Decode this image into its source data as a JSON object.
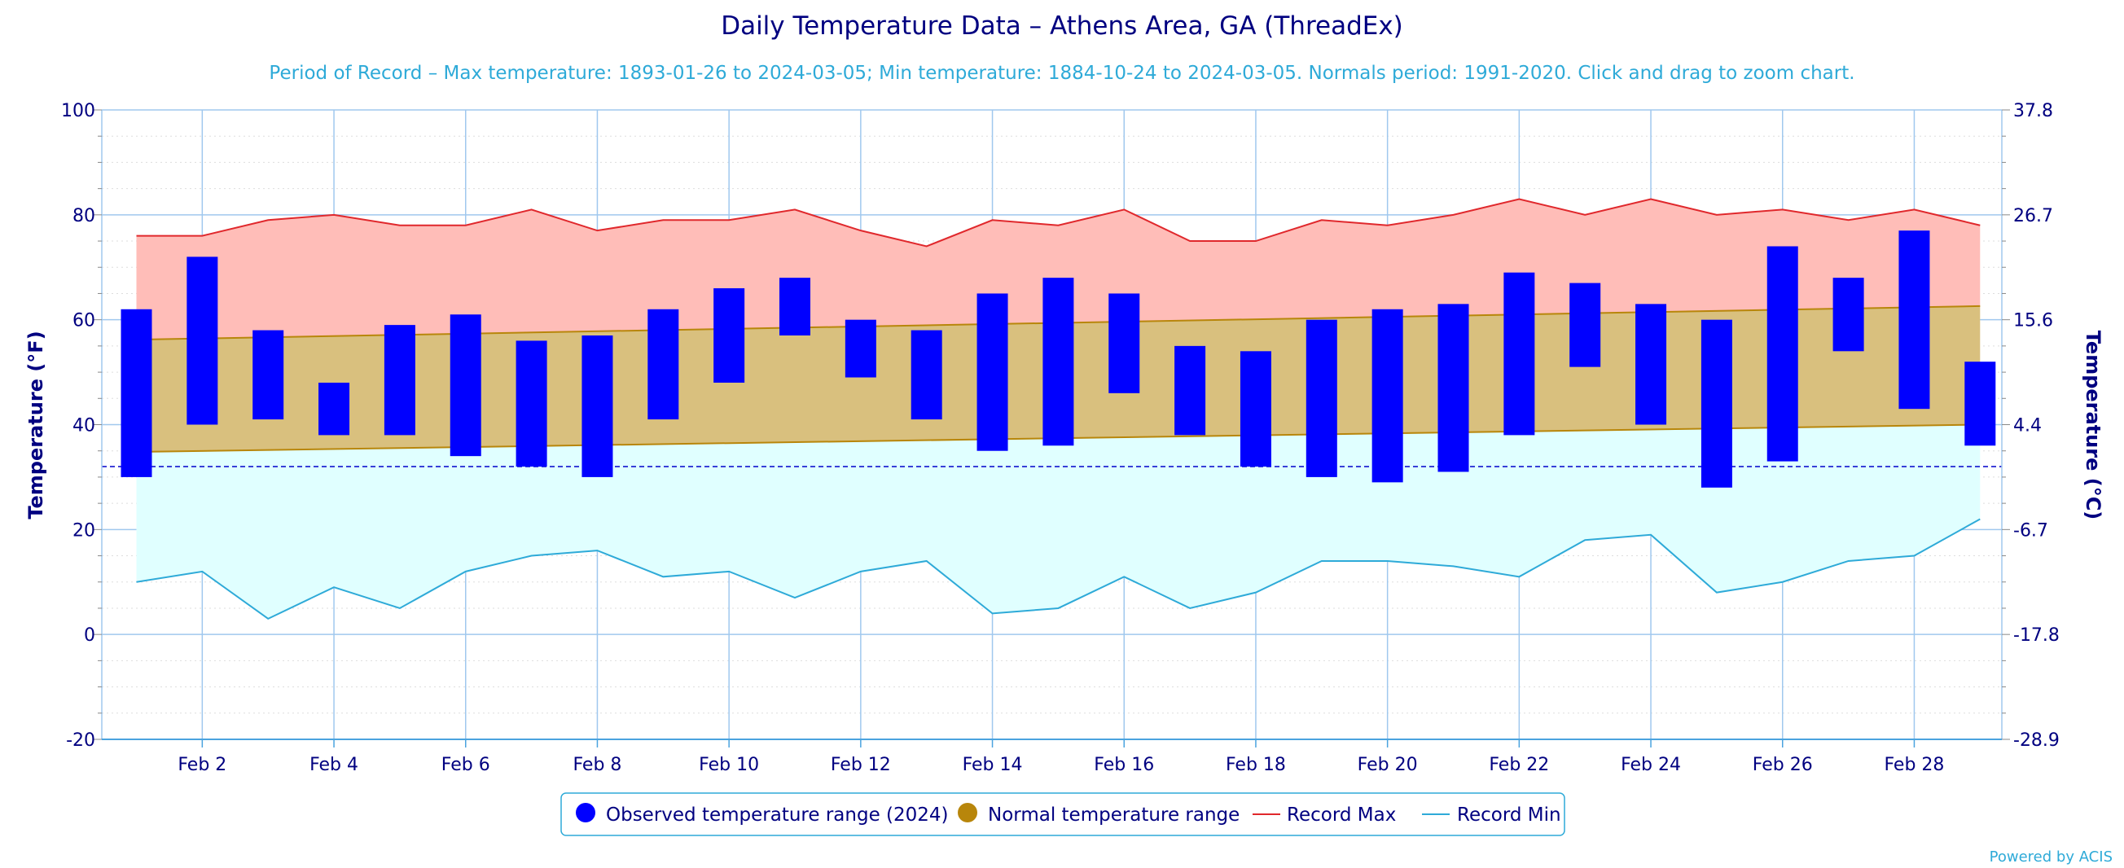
{
  "chart_data": {
    "type": "bar",
    "title": "Daily Temperature Data – Athens Area, GA (ThreadEx)",
    "subtitle": "Period of Record – Max temperature: 1893-01-26 to 2024-03-05; Min temperature: 1884-10-24 to 2024-03-05. Normals period: 1991-2020. Click and drag to zoom chart.",
    "ylabel": "Temperature (°F)",
    "ylabel_right": "Temperature (°C)",
    "ylim": [
      -20,
      100
    ],
    "y_ticks": [
      "-20",
      "0",
      "20",
      "40",
      "60",
      "80",
      "100"
    ],
    "y_ticks_right": [
      "-28.9",
      "-17.8",
      "-6.7",
      "4.4",
      "15.6",
      "26.7",
      "37.8"
    ],
    "x_ticks": [
      "Feb 2",
      "Feb 4",
      "Feb 6",
      "Feb 8",
      "Feb 10",
      "Feb 12",
      "Feb 14",
      "Feb 16",
      "Feb 18",
      "Feb 20",
      "Feb 22",
      "Feb 24",
      "Feb 26",
      "Feb 28"
    ],
    "days": [
      1,
      2,
      3,
      4,
      5,
      6,
      7,
      8,
      9,
      10,
      11,
      12,
      13,
      14,
      15,
      16,
      17,
      18,
      19,
      20,
      21,
      22,
      23,
      24,
      25,
      26,
      27,
      28,
      29
    ],
    "freezing_line": 32,
    "grid": true,
    "legend_position": "bottom",
    "series": [
      {
        "name": "Observed temperature range (2024)",
        "color": "#0000ff",
        "low": [
          30,
          40,
          41,
          38,
          38,
          34,
          32,
          30,
          41,
          48,
          57,
          49,
          41,
          35,
          36,
          46,
          38,
          32,
          30,
          29,
          31,
          38,
          51,
          40,
          28,
          33,
          54,
          43,
          36
        ],
        "high": [
          62,
          72,
          58,
          48,
          59,
          61,
          56,
          57,
          62,
          66,
          68,
          60,
          58,
          65,
          68,
          65,
          55,
          54,
          60,
          62,
          63,
          69,
          67,
          63,
          60,
          74,
          68,
          77,
          52
        ]
      },
      {
        "name": "Normal temperature range",
        "color": "#b8860b",
        "fill": "#d9c07e",
        "low_start": 34.8,
        "low_end": 40.0,
        "high_start": 56.2,
        "high_end": 62.6
      },
      {
        "name": "Record Max",
        "color": "#e0282c",
        "fill": "#ffbdb8",
        "values": [
          76,
          76,
          79,
          80,
          78,
          78,
          81,
          77,
          79,
          79,
          81,
          77,
          74,
          79,
          78,
          81,
          75,
          75,
          79,
          78,
          80,
          83,
          80,
          83,
          80,
          81,
          79,
          81,
          78
        ]
      },
      {
        "name": "Record Min",
        "color": "#2eaad8",
        "fill": "#e0ffff",
        "values": [
          10,
          12,
          3,
          9,
          5,
          12,
          15,
          16,
          11,
          12,
          7,
          12,
          14,
          4,
          5,
          11,
          5,
          8,
          14,
          14,
          13,
          11,
          18,
          19,
          8,
          10,
          14,
          15,
          22
        ]
      }
    ]
  },
  "credit": "Powered by ACIS"
}
